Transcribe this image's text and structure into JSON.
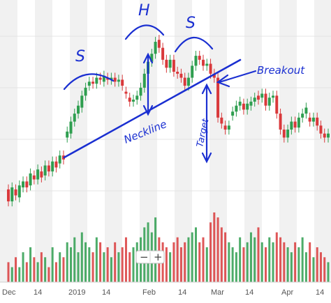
{
  "chart_data": {
    "type": "candlestick",
    "x_tick_labels": [
      "Dec",
      "14",
      "2019",
      "14",
      "Feb",
      "14",
      "Mar",
      "14",
      "Apr",
      "14"
    ],
    "candles_daily_approx": [
      {
        "o": 34,
        "c": 28
      },
      {
        "o": 28,
        "c": 35
      },
      {
        "o": 34,
        "c": 31
      },
      {
        "o": 30,
        "c": 36
      },
      {
        "o": 35,
        "c": 38
      },
      {
        "o": 38,
        "c": 35
      },
      {
        "o": 36,
        "c": 42
      },
      {
        "o": 41,
        "c": 39
      },
      {
        "o": 39,
        "c": 44
      },
      {
        "o": 43,
        "c": 40
      },
      {
        "o": 41,
        "c": 46
      },
      {
        "o": 46,
        "c": 43
      },
      {
        "o": 43,
        "c": 48
      },
      {
        "o": 48,
        "c": 45
      },
      {
        "o": 47,
        "c": 51
      },
      {
        "o": 51,
        "c": 49
      },
      {
        "o": 60,
        "c": 63
      },
      {
        "o": 62,
        "c": 68
      },
      {
        "o": 68,
        "c": 72
      },
      {
        "o": 72,
        "c": 76
      },
      {
        "o": 75,
        "c": 81
      },
      {
        "o": 81,
        "c": 85
      },
      {
        "o": 86,
        "c": 88
      },
      {
        "o": 88,
        "c": 87
      },
      {
        "o": 87,
        "c": 90
      },
      {
        "o": 90,
        "c": 89
      },
      {
        "o": 88,
        "c": 91
      },
      {
        "o": 90,
        "c": 89
      },
      {
        "o": 89,
        "c": 90
      },
      {
        "o": 90,
        "c": 88
      },
      {
        "o": 88,
        "c": 89
      },
      {
        "o": 89,
        "c": 86
      },
      {
        "o": 83,
        "c": 82
      },
      {
        "o": 80,
        "c": 78
      },
      {
        "o": 78,
        "c": 79
      },
      {
        "o": 79,
        "c": 81
      },
      {
        "o": 81,
        "c": 85
      },
      {
        "o": 85,
        "c": 92
      },
      {
        "o": 92,
        "c": 98
      },
      {
        "o": 98,
        "c": 102
      },
      {
        "o": 102,
        "c": 108
      },
      {
        "o": 109,
        "c": 105
      },
      {
        "o": 105,
        "c": 99
      },
      {
        "o": 99,
        "c": 95
      },
      {
        "o": 95,
        "c": 99
      },
      {
        "o": 99,
        "c": 93
      },
      {
        "o": 93,
        "c": 92
      },
      {
        "o": 92,
        "c": 90
      },
      {
        "o": 90,
        "c": 86
      },
      {
        "o": 86,
        "c": 90
      },
      {
        "o": 90,
        "c": 96
      },
      {
        "o": 96,
        "c": 101
      },
      {
        "o": 101,
        "c": 99
      },
      {
        "o": 99,
        "c": 96
      },
      {
        "o": 96,
        "c": 97
      },
      {
        "o": 97,
        "c": 92
      },
      {
        "o": 92,
        "c": 90
      },
      {
        "o": 90,
        "c": 70
      },
      {
        "o": 70,
        "c": 67
      },
      {
        "o": 66,
        "c": 64
      },
      {
        "o": 64,
        "c": 66
      },
      {
        "o": 71,
        "c": 73
      },
      {
        "o": 73,
        "c": 76
      },
      {
        "o": 76,
        "c": 78
      },
      {
        "o": 77,
        "c": 74
      },
      {
        "o": 74,
        "c": 77
      },
      {
        "o": 76,
        "c": 78
      },
      {
        "o": 78,
        "c": 80
      },
      {
        "o": 81,
        "c": 79
      },
      {
        "o": 80,
        "c": 82
      },
      {
        "o": 82,
        "c": 76
      },
      {
        "o": 76,
        "c": 80
      },
      {
        "o": 80,
        "c": 81
      },
      {
        "o": 81,
        "c": 72
      },
      {
        "o": 72,
        "c": 64
      },
      {
        "o": 64,
        "c": 60
      },
      {
        "o": 60,
        "c": 64
      },
      {
        "o": 64,
        "c": 68
      },
      {
        "o": 68,
        "c": 65
      },
      {
        "o": 65,
        "c": 70
      },
      {
        "o": 70,
        "c": 72
      },
      {
        "o": 72,
        "c": 75
      },
      {
        "o": 70,
        "c": 68
      },
      {
        "o": 68,
        "c": 70
      },
      {
        "o": 70,
        "c": 66
      },
      {
        "o": 66,
        "c": 62
      },
      {
        "o": 62,
        "c": 60
      },
      {
        "o": 60,
        "c": 62
      }
    ],
    "volume_approx": [
      4,
      3,
      5,
      3,
      6,
      4,
      7,
      5,
      4,
      6,
      5,
      3,
      7,
      4,
      6,
      5,
      8,
      7,
      9,
      6,
      10,
      8,
      7,
      6,
      9,
      8,
      6,
      7,
      5,
      8,
      6,
      7,
      9,
      6,
      7,
      8,
      9,
      11,
      12,
      10,
      13,
      9,
      8,
      7,
      6,
      8,
      9,
      7,
      8,
      9,
      10,
      11,
      8,
      9,
      7,
      12,
      14,
      13,
      11,
      10,
      8,
      7,
      6,
      9,
      7,
      8,
      10,
      9,
      11,
      8,
      7,
      9,
      8,
      10,
      9,
      8,
      7,
      6,
      8,
      7,
      9,
      6,
      8,
      5,
      7,
      6,
      5,
      4
    ],
    "annotations": {
      "left_shoulder": "S",
      "head": "H",
      "right_shoulder": "S",
      "neckline": "Neckline",
      "breakout": "Breakout",
      "target": "Target"
    },
    "zoom_controls": [
      "−",
      "+"
    ],
    "colors": {
      "up": "#2e9e4f",
      "down": "#d9393b",
      "annotation": "#1a2fd1",
      "band": "#f1f1f1",
      "grid": "#e4e4e4"
    },
    "grid": true
  }
}
